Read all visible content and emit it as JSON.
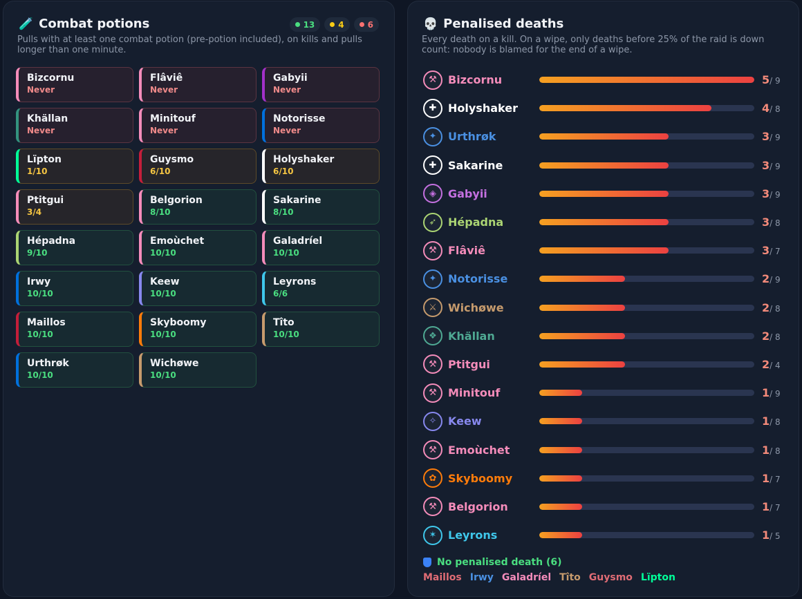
{
  "potions": {
    "icon": "potion-icon",
    "emoji": "🧪",
    "title": "Combat potions",
    "subtitle": "Pulls with at least one combat potion (pre-potion included), on kills and pulls longer than one minute.",
    "counts": {
      "green": "13",
      "yellow": "4",
      "red": "6"
    },
    "cards": [
      {
        "name": "Bizcornu",
        "value": "Never",
        "status": "never",
        "class_color": "#f48cba"
      },
      {
        "name": "Flâviê",
        "value": "Never",
        "status": "never",
        "class_color": "#f48cba"
      },
      {
        "name": "Gabyii",
        "value": "Never",
        "status": "never",
        "class_color": "#a330c9"
      },
      {
        "name": "Khällan",
        "value": "Never",
        "status": "never",
        "class_color": "#33937f"
      },
      {
        "name": "Minitouf",
        "value": "Never",
        "status": "never",
        "class_color": "#f48cba"
      },
      {
        "name": "Notorisse",
        "value": "Never",
        "status": "never",
        "class_color": "#0070dd"
      },
      {
        "name": "Lïpton",
        "value": "1/10",
        "status": "partial",
        "class_color": "#00ff98"
      },
      {
        "name": "Guysmo",
        "value": "6/10",
        "status": "partial",
        "class_color": "#c41e3a"
      },
      {
        "name": "Holyshaker",
        "value": "6/10",
        "status": "partial",
        "class_color": "#ffffff"
      },
      {
        "name": "Ptitgui",
        "value": "3/4",
        "status": "partial",
        "class_color": "#f48cba"
      },
      {
        "name": "Belgorion",
        "value": "8/10",
        "status": "full",
        "class_color": "#f48cba"
      },
      {
        "name": "Sakarine",
        "value": "8/10",
        "status": "full",
        "class_color": "#ffffff"
      },
      {
        "name": "Hépadna",
        "value": "9/10",
        "status": "full",
        "class_color": "#abd473"
      },
      {
        "name": "Emoùchet",
        "value": "10/10",
        "status": "full",
        "class_color": "#f48cba"
      },
      {
        "name": "Galadríel",
        "value": "10/10",
        "status": "full",
        "class_color": "#f48cba"
      },
      {
        "name": "Irwy",
        "value": "10/10",
        "status": "full",
        "class_color": "#0070dd"
      },
      {
        "name": "Keew",
        "value": "10/10",
        "status": "full",
        "class_color": "#8788ee"
      },
      {
        "name": "Leyrons",
        "value": "6/6",
        "status": "full",
        "class_color": "#3fc7eb"
      },
      {
        "name": "Maillos",
        "value": "10/10",
        "status": "full",
        "class_color": "#c41e3a"
      },
      {
        "name": "Skyboomy",
        "value": "10/10",
        "status": "full",
        "class_color": "#ff7c0a"
      },
      {
        "name": "Tîto",
        "value": "10/10",
        "status": "full",
        "class_color": "#c69b6d"
      },
      {
        "name": "Urthrøk",
        "value": "10/10",
        "status": "full",
        "class_color": "#0070dd"
      },
      {
        "name": "Wichøwe",
        "value": "10/10",
        "status": "full",
        "class_color": "#c69b6d"
      }
    ]
  },
  "deaths": {
    "icon": "skull-icon",
    "emoji": "💀",
    "title": "Penalised deaths",
    "subtitle": "Every death on a kill. On a wipe, only deaths before 25% of the raid is down count: nobody is blamed for the end of a wipe.",
    "players": [
      {
        "name": "Bizcornu",
        "deaths": "5",
        "total": "/ 9",
        "fraction": 1.0,
        "color": "#f48cba",
        "icon": "paladin-icon",
        "glyph": "⚒"
      },
      {
        "name": "Holyshaker",
        "deaths": "4",
        "total": "/ 8",
        "fraction": 0.8,
        "color": "#ffffff",
        "icon": "priest-icon",
        "glyph": "✚"
      },
      {
        "name": "Urthrøk",
        "deaths": "3",
        "total": "/ 9",
        "fraction": 0.6,
        "color": "#4a90e2",
        "icon": "shaman-icon",
        "glyph": "✦"
      },
      {
        "name": "Sakarine",
        "deaths": "3",
        "total": "/ 9",
        "fraction": 0.6,
        "color": "#ffffff",
        "icon": "priest-icon",
        "glyph": "✚"
      },
      {
        "name": "Gabyii",
        "deaths": "3",
        "total": "/ 9",
        "fraction": 0.6,
        "color": "#c470e0",
        "icon": "demon-hunter-icon",
        "glyph": "◈"
      },
      {
        "name": "Hépadna",
        "deaths": "3",
        "total": "/ 8",
        "fraction": 0.6,
        "color": "#abd473",
        "icon": "hunter-icon",
        "glyph": "➶"
      },
      {
        "name": "Flâviê",
        "deaths": "3",
        "total": "/ 7",
        "fraction": 0.6,
        "color": "#f48cba",
        "icon": "paladin-icon",
        "glyph": "⚒"
      },
      {
        "name": "Notorisse",
        "deaths": "2",
        "total": "/ 9",
        "fraction": 0.4,
        "color": "#4a90e2",
        "icon": "shaman-icon",
        "glyph": "✦"
      },
      {
        "name": "Wichøwe",
        "deaths": "2",
        "total": "/ 8",
        "fraction": 0.4,
        "color": "#c69b6d",
        "icon": "warrior-icon",
        "glyph": "⚔"
      },
      {
        "name": "Khällan",
        "deaths": "2",
        "total": "/ 8",
        "fraction": 0.4,
        "color": "#4fa993",
        "icon": "evoker-icon",
        "glyph": "❖"
      },
      {
        "name": "Ptitgui",
        "deaths": "2",
        "total": "/ 4",
        "fraction": 0.4,
        "color": "#f48cba",
        "icon": "paladin-icon",
        "glyph": "⚒"
      },
      {
        "name": "Minitouf",
        "deaths": "1",
        "total": "/ 9",
        "fraction": 0.2,
        "color": "#f48cba",
        "icon": "paladin-icon",
        "glyph": "⚒"
      },
      {
        "name": "Keew",
        "deaths": "1",
        "total": "/ 8",
        "fraction": 0.2,
        "color": "#8788ee",
        "icon": "warlock-icon",
        "glyph": "✧"
      },
      {
        "name": "Emoùchet",
        "deaths": "1",
        "total": "/ 8",
        "fraction": 0.2,
        "color": "#f48cba",
        "icon": "paladin-icon",
        "glyph": "⚒"
      },
      {
        "name": "Skyboomy",
        "deaths": "1",
        "total": "/ 7",
        "fraction": 0.2,
        "color": "#ff7c0a",
        "icon": "druid-icon",
        "glyph": "✿"
      },
      {
        "name": "Belgorion",
        "deaths": "1",
        "total": "/ 7",
        "fraction": 0.2,
        "color": "#f48cba",
        "icon": "paladin-icon",
        "glyph": "⚒"
      },
      {
        "name": "Leyrons",
        "deaths": "1",
        "total": "/ 5",
        "fraction": 0.2,
        "color": "#3fc7eb",
        "icon": "mage-icon",
        "glyph": "✶"
      }
    ],
    "no_death": {
      "label": "No penalised death (6)",
      "icon": "shield-icon",
      "names": [
        {
          "name": "Maillos",
          "color": "#e06c75"
        },
        {
          "name": "Irwy",
          "color": "#4a90e2"
        },
        {
          "name": "Galadríel",
          "color": "#f48cba"
        },
        {
          "name": "Tîto",
          "color": "#c69b6d"
        },
        {
          "name": "Guysmo",
          "color": "#e06c75"
        },
        {
          "name": "Lïpton",
          "color": "#00ff98"
        }
      ]
    }
  }
}
